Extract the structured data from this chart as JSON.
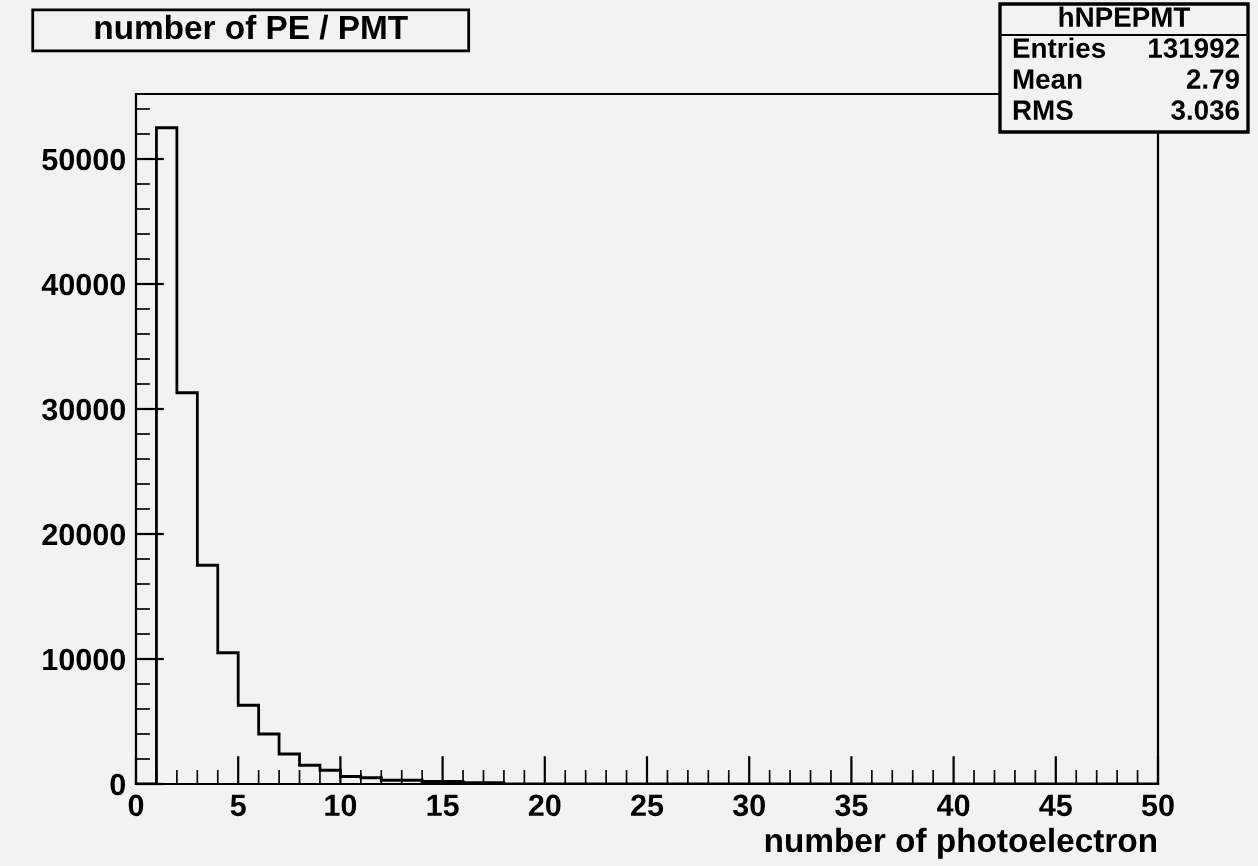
{
  "chart_data": {
    "type": "histogram",
    "title": "number of PE / PMT",
    "xlabel": "number of photoelectron",
    "bins": [
      0,
      1,
      2,
      3,
      4,
      5,
      6,
      7,
      8,
      9,
      10,
      11,
      12,
      13,
      14,
      15,
      16,
      17,
      18,
      19,
      20,
      21,
      22,
      23,
      24,
      25,
      26,
      27,
      28,
      29,
      30,
      31,
      32,
      33,
      34,
      35,
      36,
      37,
      38,
      39,
      40,
      41,
      42,
      43,
      44,
      45,
      46,
      47,
      48,
      49,
      50
    ],
    "values": [
      0,
      52500,
      31300,
      17500,
      10500,
      6300,
      4000,
      2400,
      1500,
      1100,
      600,
      500,
      300,
      300,
      200,
      200,
      100,
      100,
      0,
      0,
      0,
      0,
      0,
      0,
      0,
      0,
      0,
      0,
      0,
      0,
      0,
      0,
      0,
      0,
      0,
      0,
      0,
      0,
      0,
      0,
      0,
      0,
      0,
      0,
      0,
      0,
      0,
      0,
      0,
      0
    ],
    "color": "#000000",
    "xlim": [
      0,
      50
    ],
    "xticks": [
      0,
      5,
      10,
      15,
      20,
      25,
      30,
      35,
      40,
      45,
      50
    ],
    "ylim": [
      0,
      55200
    ],
    "yticks": [
      0,
      10000,
      20000,
      30000,
      40000,
      50000
    ],
    "grid": false,
    "annotations": [
      "hNPEPMT",
      "Entries",
      "131992",
      "Mean",
      "2.79",
      "RMS",
      "3.036"
    ]
  }
}
